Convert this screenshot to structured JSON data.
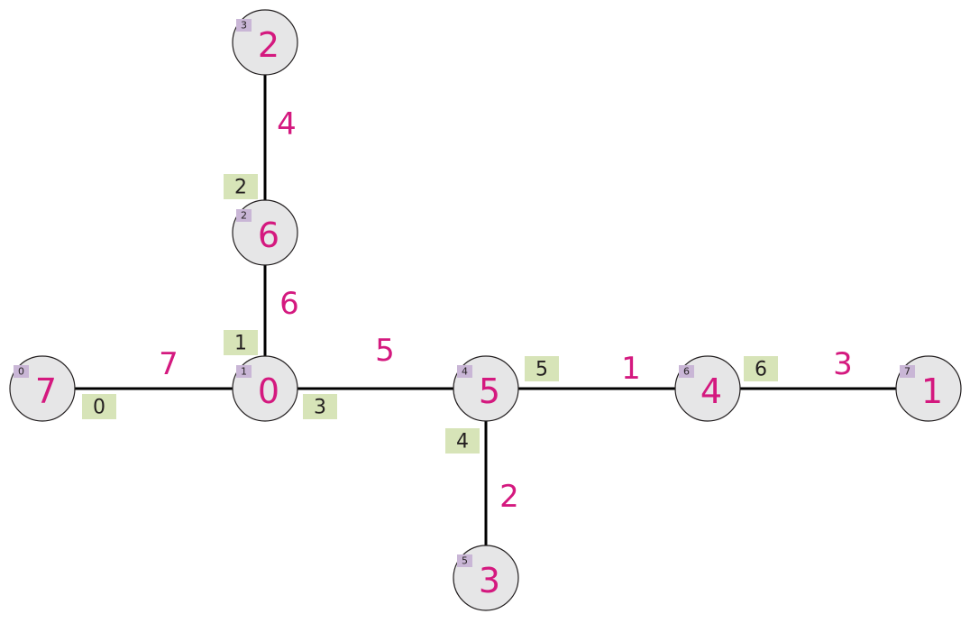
{
  "colors": {
    "node_fill": "#e6e6e7",
    "node_stroke": "#231f20",
    "label_color": "#d4197f",
    "node_tag_fill": "#c9b6d6",
    "edge_tag_fill": "#d7e4b8",
    "tag_text": "#231f20"
  },
  "nodes": [
    {
      "id": "n-top",
      "label": "2",
      "index": "3"
    },
    {
      "id": "n-upper",
      "label": "6",
      "index": "2"
    },
    {
      "id": "n-center",
      "label": "0",
      "index": "1"
    },
    {
      "id": "n-left",
      "label": "7",
      "index": "0"
    },
    {
      "id": "n-middle",
      "label": "5",
      "index": "4"
    },
    {
      "id": "n-bottom",
      "label": "3",
      "index": "5"
    },
    {
      "id": "n-right-inner",
      "label": "4",
      "index": "6"
    },
    {
      "id": "n-right-outer",
      "label": "1",
      "index": "7"
    }
  ],
  "edges": [
    {
      "id": "e-top-upper",
      "from": "n-top",
      "to": "n-upper",
      "label": "4",
      "index": "2"
    },
    {
      "id": "e-upper-center",
      "from": "n-upper",
      "to": "n-center",
      "label": "6",
      "index": "1"
    },
    {
      "id": "e-left-center",
      "from": "n-left",
      "to": "n-center",
      "label": "7",
      "index": "0"
    },
    {
      "id": "e-center-middle",
      "from": "n-center",
      "to": "n-middle",
      "label": "5",
      "index": "3"
    },
    {
      "id": "e-middle-right",
      "from": "n-middle",
      "to": "n-right-inner",
      "label": "1",
      "index": "5"
    },
    {
      "id": "e-middle-bottom",
      "from": "n-middle",
      "to": "n-bottom",
      "label": "2",
      "index": "4"
    },
    {
      "id": "e-right-right",
      "from": "n-right-inner",
      "to": "n-right-outer",
      "label": "3",
      "index": "6"
    }
  ]
}
